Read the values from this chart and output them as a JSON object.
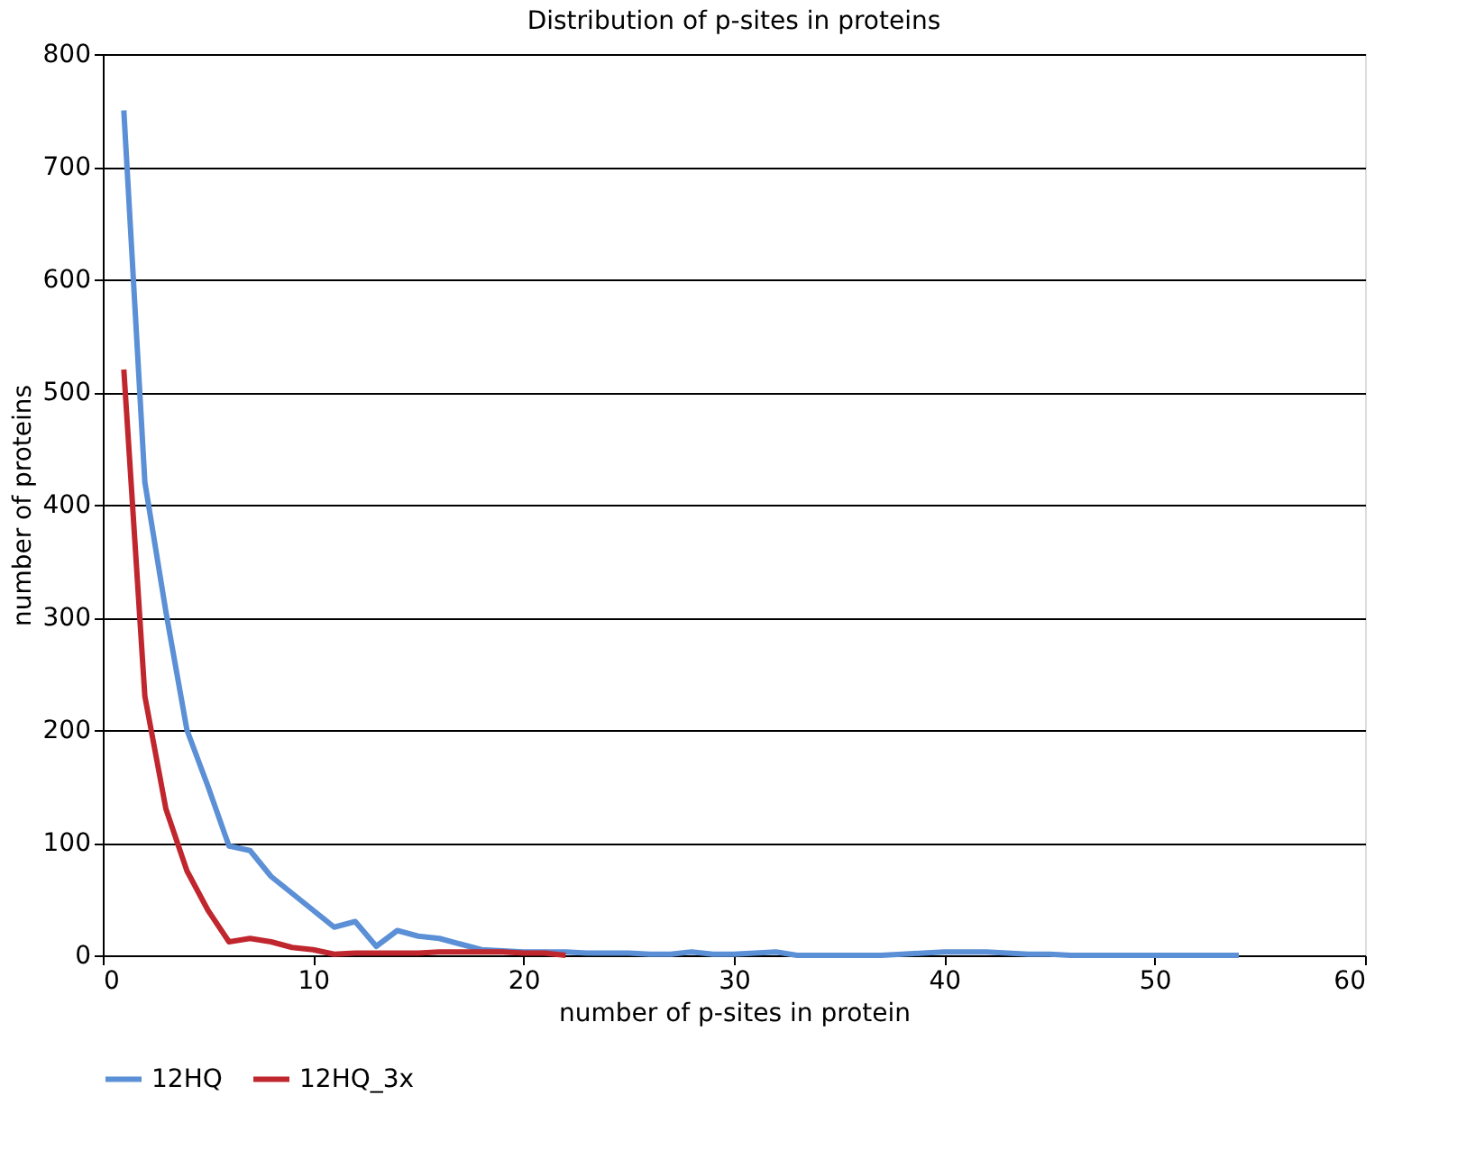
{
  "chart_data": {
    "type": "line",
    "title": "Distribution of p-sites in proteins",
    "xlabel": "number of p-sites in protein",
    "ylabel": "number of proteins",
    "xlim": [
      0,
      60
    ],
    "xticks": [
      0,
      10,
      20,
      30,
      40,
      50,
      60
    ],
    "ylim": [
      0,
      800
    ],
    "yticks": [
      0,
      100,
      200,
      300,
      400,
      500,
      600,
      700,
      800
    ],
    "grid": "y",
    "legend": "bottom",
    "marker": "none",
    "line_style": "solid",
    "series": [
      {
        "name": "12HQ",
        "color": "#5b8fd6",
        "x": [
          1,
          2,
          3,
          4,
          5,
          6,
          7,
          8,
          9,
          10,
          11,
          12,
          13,
          14,
          15,
          16,
          17,
          18,
          19,
          20,
          21,
          22,
          23,
          24,
          25,
          26,
          27,
          28,
          29,
          30,
          31,
          32,
          33,
          34,
          35,
          36,
          37,
          38,
          39,
          40,
          41,
          42,
          43,
          44,
          45,
          46,
          47,
          48,
          49,
          50,
          51,
          52,
          53,
          54
        ],
        "values": [
          750,
          420,
          305,
          200,
          150,
          97,
          93,
          70,
          55,
          40,
          25,
          30,
          8,
          22,
          17,
          15,
          10,
          5,
          4,
          3,
          3,
          3,
          2,
          2,
          2,
          1,
          1,
          3,
          1,
          1,
          2,
          3,
          0,
          0,
          0,
          0,
          0,
          1,
          2,
          3,
          3,
          3,
          2,
          1,
          1,
          0,
          0,
          0,
          0,
          0,
          0,
          0,
          0,
          0
        ]
      },
      {
        "name": "12HQ_3x",
        "color": "#c0262d",
        "x": [
          1,
          2,
          3,
          4,
          5,
          6,
          7,
          8,
          9,
          10,
          11,
          12,
          13,
          14,
          15,
          16,
          17,
          18,
          19,
          20,
          21,
          22
        ],
        "values": [
          520,
          230,
          130,
          75,
          40,
          12,
          15,
          12,
          7,
          5,
          1,
          2,
          2,
          2,
          2,
          3,
          3,
          3,
          3,
          2,
          2,
          0
        ]
      }
    ]
  }
}
